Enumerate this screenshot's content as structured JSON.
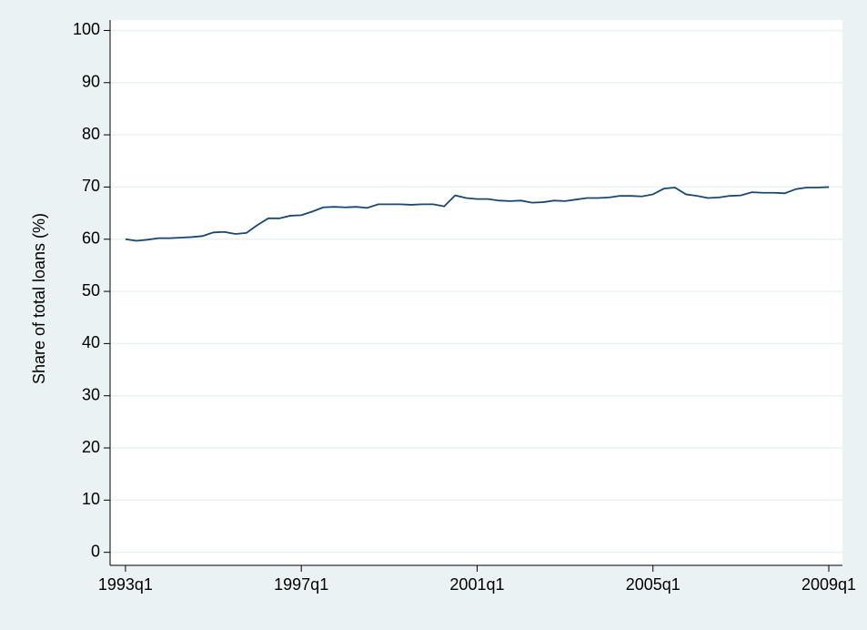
{
  "chart_data": {
    "type": "line",
    "y_label": "Share of total loans (%)",
    "x": [
      1993,
      1993.25,
      1993.5,
      1993.75,
      1994,
      1994.25,
      1994.5,
      1994.75,
      1995,
      1995.25,
      1995.5,
      1995.75,
      1996,
      1996.25,
      1996.5,
      1996.75,
      1997,
      1997.25,
      1997.5,
      1997.75,
      1998,
      1998.25,
      1998.5,
      1998.75,
      1999,
      1999.25,
      1999.5,
      1999.75,
      2000,
      2000.25,
      2000.5,
      2000.75,
      2001,
      2001.25,
      2001.5,
      2001.75,
      2002,
      2002.25,
      2002.5,
      2002.75,
      2003,
      2003.25,
      2003.5,
      2003.75,
      2004,
      2004.25,
      2004.5,
      2004.75,
      2005,
      2005.25,
      2005.5,
      2005.75,
      2006,
      2006.25,
      2006.5,
      2006.75,
      2007,
      2007.25,
      2007.5,
      2007.75,
      2008,
      2008.25,
      2008.5,
      2008.75,
      2009
    ],
    "values": [
      60.0,
      59.7,
      59.9,
      60.2,
      60.2,
      60.3,
      60.4,
      60.6,
      61.3,
      61.4,
      61.0,
      61.2,
      62.7,
      64.0,
      64.0,
      64.5,
      64.6,
      65.3,
      66.1,
      66.2,
      66.1,
      66.2,
      66.0,
      66.7,
      66.7,
      66.7,
      66.6,
      66.7,
      66.7,
      66.3,
      68.4,
      67.9,
      67.7,
      67.7,
      67.4,
      67.3,
      67.4,
      67.0,
      67.1,
      67.4,
      67.3,
      67.6,
      67.9,
      67.9,
      68.0,
      68.3,
      68.3,
      68.2,
      68.6,
      69.7,
      69.9,
      68.6,
      68.3,
      67.9,
      68.0,
      68.3,
      68.4,
      69.0,
      68.9,
      68.9,
      68.8,
      69.6,
      69.9,
      69.9,
      70.0
    ],
    "color": "#1a476f",
    "xlim": [
      1992.65,
      2009.31
    ],
    "ylim": [
      -2.5,
      102
    ],
    "xticks": [
      {
        "value": 1993,
        "label": "1993q1"
      },
      {
        "value": 1997,
        "label": "1997q1"
      },
      {
        "value": 2001,
        "label": "2001q1"
      },
      {
        "value": 2005,
        "label": "2005q1"
      },
      {
        "value": 2009,
        "label": "2009q1"
      }
    ],
    "yticks": [
      0,
      10,
      20,
      30,
      40,
      50,
      60,
      70,
      80,
      90,
      100
    ],
    "grid": true
  }
}
